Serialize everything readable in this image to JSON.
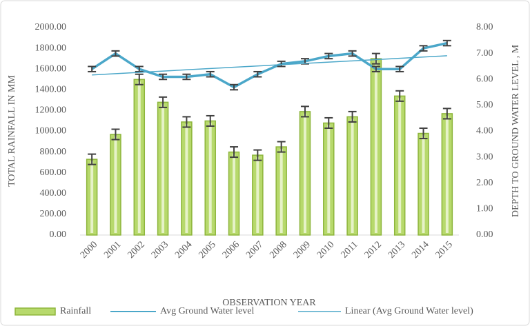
{
  "chart_data": {
    "type": "bar",
    "x_label": "OBSERVATION YEAR",
    "y_label": "TOTAL RAINFALL IN MM",
    "y2_label": "DEPTH TO GROUND WATER LEVEL , M",
    "categories": [
      "2000",
      "2001",
      "2002",
      "2003",
      "2004",
      "2005",
      "2006",
      "2007",
      "2008",
      "2009",
      "2010",
      "2011",
      "2012",
      "2013",
      "2014",
      "2015"
    ],
    "series": [
      {
        "name": "Rainfall",
        "type": "bar",
        "color": "#b7d96c",
        "values": [
          730,
          970,
          1500,
          1280,
          1090,
          1100,
          800,
          770,
          850,
          1190,
          1080,
          1140,
          1700,
          1340,
          980,
          1170
        ],
        "errors": [
          50,
          50,
          50,
          50,
          50,
          50,
          50,
          50,
          50,
          50,
          50,
          50,
          50,
          50,
          50,
          50
        ]
      },
      {
        "name": "Avg Ground Water level",
        "type": "line",
        "axis": "y2",
        "color": "#4ba7c9",
        "values": [
          6.4,
          7.0,
          6.4,
          6.1,
          6.1,
          6.2,
          5.7,
          6.2,
          6.6,
          6.7,
          6.9,
          7.0,
          6.4,
          6.4,
          7.2,
          7.4
        ],
        "errors": [
          0.1,
          0.1,
          0.1,
          0.1,
          0.1,
          0.1,
          0.1,
          0.1,
          0.1,
          0.1,
          0.1,
          0.1,
          0.1,
          0.1,
          0.1,
          0.1
        ]
      }
    ],
    "trendline": {
      "name": "Linear (Avg Ground Water level)",
      "kind": "linear",
      "color": "#4ba7c9"
    },
    "ylim": [
      0,
      2000
    ],
    "yticks": [
      {
        "value": 0,
        "label": "0.00"
      },
      {
        "value": 200,
        "label": "200.00"
      },
      {
        "value": 400,
        "label": "400.00"
      },
      {
        "value": 600,
        "label": "600.00"
      },
      {
        "value": 800,
        "label": "800.00"
      },
      {
        "value": 1000,
        "label": "1000.00"
      },
      {
        "value": 1200,
        "label": "1200.00"
      },
      {
        "value": 1400,
        "label": "1400.00"
      },
      {
        "value": 1600,
        "label": "1600.00"
      },
      {
        "value": 1800,
        "label": "1800.00"
      },
      {
        "value": 2000,
        "label": "2000.00"
      }
    ],
    "y2lim": [
      0,
      8
    ],
    "y2ticks": [
      {
        "value": 0,
        "label": "0.00"
      },
      {
        "value": 1,
        "label": "1.00"
      },
      {
        "value": 2,
        "label": "2.00"
      },
      {
        "value": 3,
        "label": "3.00"
      },
      {
        "value": 4,
        "label": "4.00"
      },
      {
        "value": 5,
        "label": "5.00"
      },
      {
        "value": 6,
        "label": "6.00"
      },
      {
        "value": 7,
        "label": "7.00"
      },
      {
        "value": 8,
        "label": "8.00"
      }
    ],
    "grid": false,
    "legend": "bottom"
  }
}
